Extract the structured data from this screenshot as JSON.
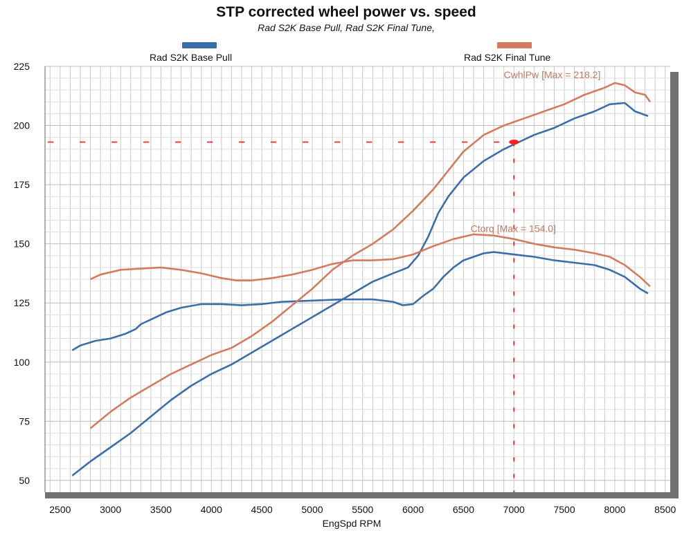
{
  "chart_data": {
    "type": "line",
    "title": "STP corrected wheel power vs. speed",
    "subtitle": "Rad S2K Base Pull, Rad S2K Final Tune,",
    "xlabel": "EngSpd  RPM",
    "ylabel": "",
    "xlim": [
      2350,
      8550
    ],
    "ylim": [
      45,
      225
    ],
    "x_ticks": [
      2500,
      3000,
      3500,
      4000,
      4500,
      5000,
      5500,
      6000,
      6500,
      7000,
      7500,
      8000,
      8500
    ],
    "y_ticks": [
      50,
      75,
      100,
      125,
      150,
      175,
      200,
      225
    ],
    "grid": true,
    "legend": [
      {
        "name": "Rad S2K Base Pull",
        "color": "#3a6ea8"
      },
      {
        "name": "Rad S2K Final Tune",
        "color": "#d47a5e"
      }
    ],
    "annotations": [
      {
        "text": "CwhlPw [Max = 218.2]",
        "x": 6900,
        "y": 220,
        "color": "#c9785e"
      },
      {
        "text": "Ctorq  [Max = 154.0]",
        "x": 6570,
        "y": 155,
        "color": "#c9785e"
      }
    ],
    "cursor": {
      "x": 7000,
      "y": 193
    },
    "series": [
      {
        "name": "Rad S2K Base Pull",
        "metric": "CwhlPw",
        "color": "#3a6ea8",
        "points": [
          [
            2620,
            52
          ],
          [
            2800,
            58
          ],
          [
            3000,
            64
          ],
          [
            3200,
            70
          ],
          [
            3400,
            77
          ],
          [
            3600,
            84
          ],
          [
            3800,
            90
          ],
          [
            4000,
            95
          ],
          [
            4200,
            99
          ],
          [
            4400,
            104
          ],
          [
            4600,
            109
          ],
          [
            4800,
            114
          ],
          [
            5000,
            119
          ],
          [
            5200,
            124
          ],
          [
            5400,
            129
          ],
          [
            5600,
            134
          ],
          [
            5800,
            137.5
          ],
          [
            5950,
            140
          ],
          [
            6050,
            145
          ],
          [
            6150,
            153
          ],
          [
            6250,
            163
          ],
          [
            6350,
            170
          ],
          [
            6500,
            178
          ],
          [
            6700,
            185
          ],
          [
            6900,
            190
          ],
          [
            7050,
            193
          ],
          [
            7200,
            196
          ],
          [
            7400,
            199
          ],
          [
            7600,
            203
          ],
          [
            7800,
            206
          ],
          [
            7950,
            209
          ],
          [
            8100,
            209.5
          ],
          [
            8200,
            206
          ],
          [
            8330,
            204
          ]
        ]
      },
      {
        "name": "Rad S2K Base Pull",
        "metric": "Ctorq",
        "color": "#3a6ea8",
        "points": [
          [
            2620,
            105
          ],
          [
            2700,
            107
          ],
          [
            2850,
            109
          ],
          [
            3000,
            110
          ],
          [
            3150,
            112
          ],
          [
            3250,
            114
          ],
          [
            3300,
            116
          ],
          [
            3450,
            119
          ],
          [
            3550,
            121
          ],
          [
            3700,
            123
          ],
          [
            3900,
            124.5
          ],
          [
            4100,
            124.5
          ],
          [
            4300,
            124
          ],
          [
            4500,
            124.5
          ],
          [
            4700,
            125.5
          ],
          [
            5000,
            126
          ],
          [
            5300,
            126.5
          ],
          [
            5600,
            126.5
          ],
          [
            5800,
            125.5
          ],
          [
            5900,
            124
          ],
          [
            6000,
            124.5
          ],
          [
            6100,
            128
          ],
          [
            6200,
            131
          ],
          [
            6300,
            136
          ],
          [
            6400,
            140
          ],
          [
            6500,
            143
          ],
          [
            6700,
            146
          ],
          [
            6800,
            146.5
          ],
          [
            7000,
            145.5
          ],
          [
            7200,
            144.5
          ],
          [
            7400,
            143
          ],
          [
            7600,
            142
          ],
          [
            7800,
            141
          ],
          [
            7950,
            139
          ],
          [
            8100,
            136
          ],
          [
            8250,
            131
          ],
          [
            8330,
            129
          ]
        ]
      },
      {
        "name": "Rad S2K Final Tune",
        "metric": "CwhlPw",
        "color": "#d47a5e",
        "points": [
          [
            2800,
            72
          ],
          [
            3000,
            79
          ],
          [
            3200,
            85
          ],
          [
            3400,
            90
          ],
          [
            3600,
            95
          ],
          [
            3800,
            99
          ],
          [
            4000,
            103
          ],
          [
            4200,
            106
          ],
          [
            4400,
            111
          ],
          [
            4600,
            117
          ],
          [
            4800,
            124
          ],
          [
            5000,
            131
          ],
          [
            5200,
            139
          ],
          [
            5400,
            145
          ],
          [
            5600,
            150
          ],
          [
            5800,
            156
          ],
          [
            6000,
            164
          ],
          [
            6200,
            173
          ],
          [
            6350,
            181
          ],
          [
            6500,
            189
          ],
          [
            6700,
            196
          ],
          [
            6900,
            200
          ],
          [
            7100,
            203
          ],
          [
            7300,
            206
          ],
          [
            7500,
            209
          ],
          [
            7700,
            213
          ],
          [
            7900,
            216
          ],
          [
            8000,
            218
          ],
          [
            8100,
            217
          ],
          [
            8200,
            214
          ],
          [
            8300,
            213
          ],
          [
            8350,
            210
          ]
        ]
      },
      {
        "name": "Rad S2K Final Tune",
        "metric": "Ctorq",
        "color": "#d47a5e",
        "points": [
          [
            2800,
            135
          ],
          [
            2900,
            137
          ],
          [
            3100,
            139
          ],
          [
            3300,
            139.5
          ],
          [
            3500,
            140
          ],
          [
            3700,
            139
          ],
          [
            3900,
            137.5
          ],
          [
            4100,
            135.5
          ],
          [
            4250,
            134.5
          ],
          [
            4400,
            134.5
          ],
          [
            4600,
            135.5
          ],
          [
            4800,
            137
          ],
          [
            5000,
            139
          ],
          [
            5200,
            141.5
          ],
          [
            5400,
            143
          ],
          [
            5600,
            143
          ],
          [
            5800,
            143.5
          ],
          [
            6000,
            145.5
          ],
          [
            6200,
            149
          ],
          [
            6400,
            152
          ],
          [
            6600,
            154
          ],
          [
            6800,
            153.5
          ],
          [
            7000,
            152
          ],
          [
            7200,
            150
          ],
          [
            7400,
            148.5
          ],
          [
            7600,
            147.5
          ],
          [
            7800,
            146
          ],
          [
            7950,
            144.5
          ],
          [
            8100,
            141
          ],
          [
            8250,
            136
          ],
          [
            8350,
            132
          ]
        ]
      }
    ]
  }
}
